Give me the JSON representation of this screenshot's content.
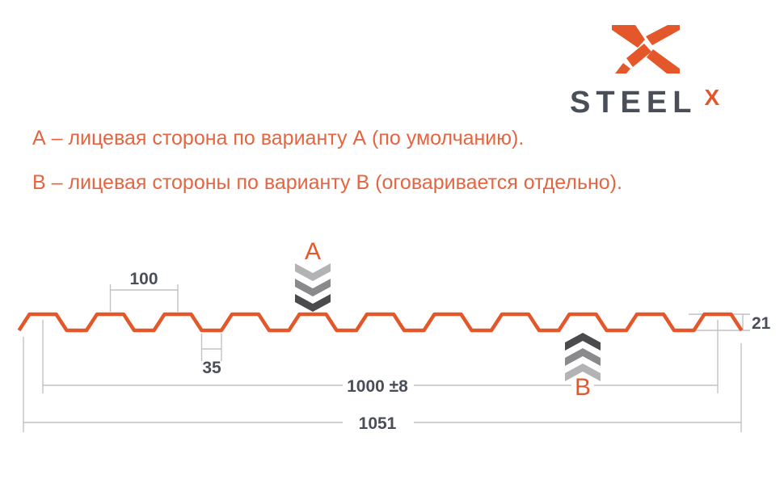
{
  "logo": {
    "wordmark": "STEEL",
    "wordmark_suffix": "X"
  },
  "notes": {
    "line_a": "А – лицевая сторона по варианту А (по умолчанию).",
    "line_b": "В – лицевая стороны по варианту В (оговаривается отдельно)."
  },
  "diagram": {
    "side_a_label": "А",
    "side_b_label": "В",
    "dimensions": {
      "pitch": "100",
      "valley_width": "35",
      "profile_height": "21",
      "useful_width": "1000 ±8",
      "overall_width": "1051"
    }
  },
  "colors": {
    "accent_orange": "#E4572B",
    "heading_orange": "#E56541",
    "text_dark": "#4A4E59",
    "dimension_line_gray": "#C2C2C4",
    "chevron_light": "#B3B3B5",
    "chevron_mid": "#8A8A8C",
    "chevron_dark": "#4B4B4E"
  }
}
